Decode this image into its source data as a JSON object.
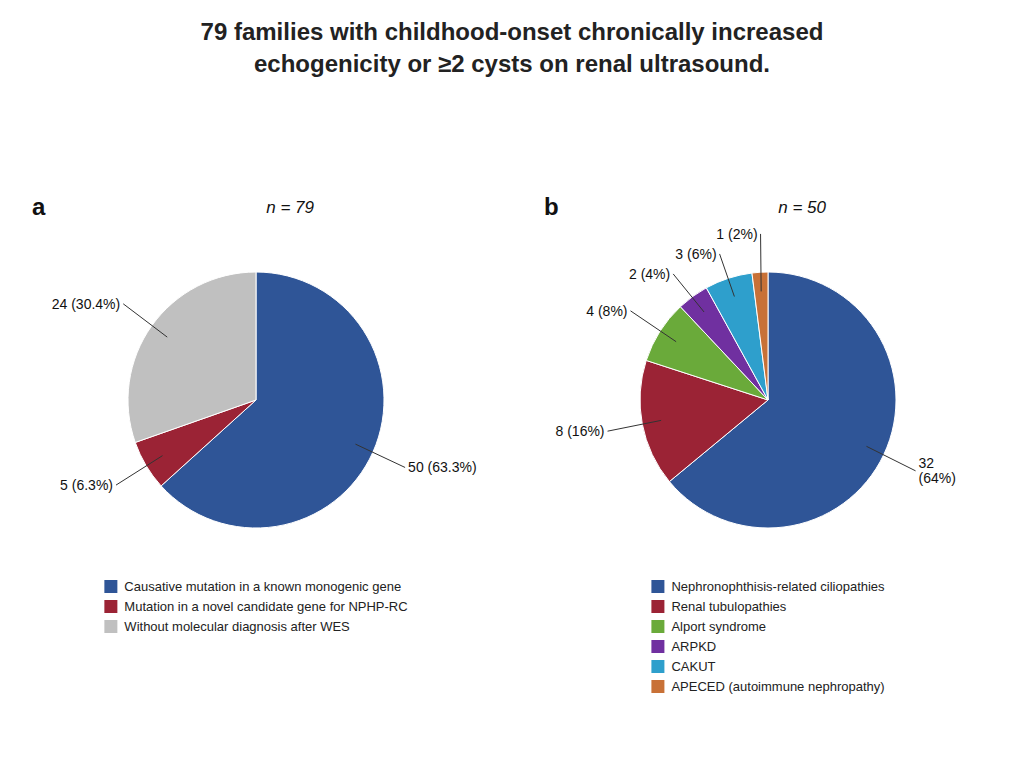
{
  "chart_data": [
    {
      "type": "pie",
      "title": "79 families with childhood-onset chronically increased\nechogenicity or ≥2 cysts on renal ultrasound.",
      "annotations": [
        "a",
        "n = 79"
      ],
      "categories": [
        "Causative mutation in a known monogenic gene",
        "Mutation in a novel candidate gene for NPHP-RC",
        "Without molecular diagnosis after WES"
      ],
      "values": [
        50,
        5,
        24
      ],
      "value_labels": [
        "50 (63.3%)",
        "5 (6.3%)",
        "24 (30.4%)"
      ],
      "colors": [
        "#2f5597",
        "#9b2335",
        "#c0c0c0"
      ],
      "data_labels": true,
      "legend": "bottom"
    },
    {
      "type": "pie",
      "annotations": [
        "b",
        "n = 50"
      ],
      "categories": [
        "Nephronophthisis-related ciliopathies",
        "Renal tubulopathies",
        "Alport syndrome",
        "ARPKD",
        "CAKUT",
        "APECED (autoimmune nephropathy)"
      ],
      "values": [
        32,
        8,
        4,
        2,
        3,
        1
      ],
      "value_labels": [
        "32\n(64%)",
        "8 (16%)",
        "4 (8%)",
        "2 (4%)",
        "3 (6%)",
        "1 (2%)"
      ],
      "colors": [
        "#2f5597",
        "#9b2335",
        "#6aaa3a",
        "#7030a0",
        "#2e9fcc",
        "#c87137"
      ],
      "data_labels": true,
      "legend": "bottom"
    }
  ]
}
